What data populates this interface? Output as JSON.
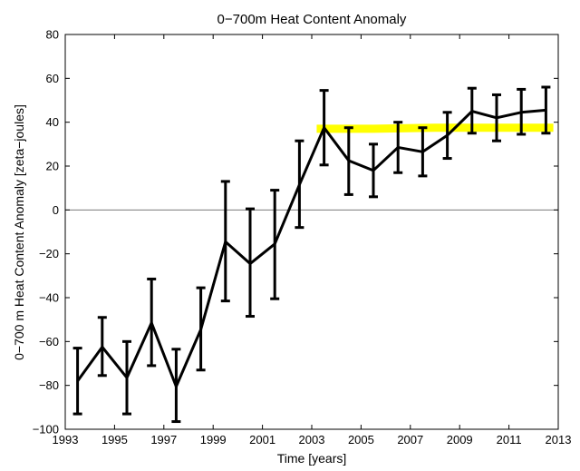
{
  "chart_data": {
    "type": "line",
    "title": "0−700m Heat Content Anomaly",
    "xlabel": "Time [years]",
    "ylabel": "0−700 m Heat Content Anomaly [zeta−joules]",
    "xlim": [
      1993,
      2013
    ],
    "ylim": [
      -100,
      80
    ],
    "xticks": [
      1993,
      1995,
      1997,
      1999,
      2001,
      2003,
      2005,
      2007,
      2009,
      2011,
      2013
    ],
    "yticks": [
      -100,
      -80,
      -60,
      -40,
      -20,
      0,
      20,
      40,
      60,
      80
    ],
    "xtick_labels": [
      "1993",
      "1995",
      "1997",
      "1999",
      "2001",
      "2003",
      "2005",
      "2007",
      "2009",
      "2011",
      "2013"
    ],
    "ytick_labels": [
      "−100",
      "−80",
      "−60",
      "−40",
      "−20",
      "0",
      "20",
      "40",
      "60",
      "80"
    ],
    "grid": false,
    "zero_line": true,
    "series": [
      {
        "color": "#000000",
        "error_bars": true,
        "x": [
          1993.5,
          1994.5,
          1995.5,
          1996.5,
          1997.5,
          1998.5,
          1999.5,
          2000.5,
          2001.5,
          2002.5,
          2003.5,
          2004.5,
          2005.5,
          2006.5,
          2007.5,
          2008.5,
          2009.5,
          2010.5,
          2011.5,
          2012.5
        ],
        "y": [
          -78,
          -62.5,
          -76.5,
          -51.5,
          -80.5,
          -54.5,
          -14.5,
          -24.5,
          -15.5,
          11.5,
          37.5,
          22.5,
          18,
          28.5,
          26.5,
          34,
          45,
          42,
          44.5,
          45.5
        ],
        "y_lower": [
          -93,
          -75.5,
          -93,
          -71,
          -96.5,
          -73,
          -41.5,
          -48.5,
          -40.5,
          -8,
          20.5,
          7,
          6,
          17,
          15.5,
          23.5,
          35,
          31.5,
          34.5,
          35
        ],
        "y_upper": [
          -63,
          -49,
          -60,
          -31.5,
          -63.5,
          -35.5,
          13,
          0.5,
          9,
          31.5,
          54.5,
          37.5,
          30,
          40,
          37.5,
          44.5,
          55.5,
          52.5,
          55,
          56
        ]
      },
      {
        "color": "#ffff00",
        "x": [
          2003.2,
          2005.5,
          2008.0,
          2010.5,
          2012.8
        ],
        "y": [
          37,
          37,
          37.5,
          37.5,
          37.5
        ]
      }
    ]
  }
}
